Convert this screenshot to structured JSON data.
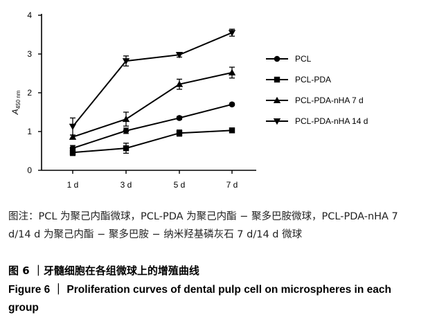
{
  "chart_data": {
    "type": "line",
    "ylabel_main": "A",
    "ylabel_sub": "450 nm",
    "categories": [
      "1 d",
      "3 d",
      "5 d",
      "7 d"
    ],
    "yticks": [
      "0",
      "1",
      "2",
      "3",
      "4"
    ],
    "ylim": [
      0,
      4
    ],
    "series": [
      {
        "name": "PCL",
        "marker": "circle",
        "values": [
          0.57,
          1.02,
          1.35,
          1.7
        ],
        "errors": [
          0.07,
          0.07,
          0.04,
          0.03
        ]
      },
      {
        "name": "PCL-PDA",
        "marker": "square",
        "values": [
          0.46,
          0.57,
          0.96,
          1.03
        ],
        "errors": [
          0.08,
          0.13,
          0.08,
          0.06
        ]
      },
      {
        "name": "PCL-PDA-nHA 7 d",
        "marker": "triangle-up",
        "values": [
          0.86,
          1.32,
          2.22,
          2.52
        ],
        "errors": [
          0.05,
          0.18,
          0.13,
          0.14
        ]
      },
      {
        "name": "PCL-PDA-nHA 14 d",
        "marker": "triangle-down",
        "values": [
          1.13,
          2.82,
          2.98,
          3.55
        ],
        "errors": [
          0.22,
          0.13,
          0.06,
          0.09
        ]
      }
    ],
    "legend_position": "right",
    "grid": false
  },
  "note": "图注：PCL 为聚己内酯微球，PCL-PDA 为聚己内酯 − 聚多巴胺微球，PCL-PDA-nHA 7 d/14 d 为聚己内酯 − 聚多巴胺 − 纳米羟基磷灰石 7 d/14 d 微球",
  "caption_cn": "图 6 ｜牙髓细胞在各组微球上的增殖曲线",
  "caption_en": "Figure 6 ｜ Proliferation curves of dental pulp cell on microspheres in each group"
}
